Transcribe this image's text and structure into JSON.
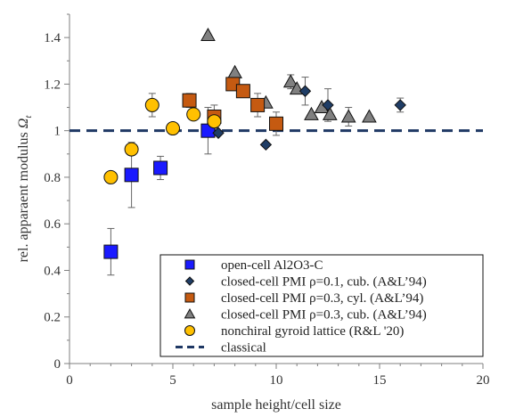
{
  "chart_data": {
    "type": "scatter",
    "title": "",
    "xlabel": "sample height/cell size",
    "ylabel_prefix": "rel. apparaent modulus ",
    "ylabel_symbol": "Ω",
    "ylabel_subscript": "t",
    "xlim": [
      0,
      20
    ],
    "ylim": [
      0,
      1.5
    ],
    "x_ticks": [
      "0",
      "5",
      "10",
      "15",
      "20"
    ],
    "y_ticks": [
      "0",
      "0.2",
      "0.4",
      "0.6",
      "0.8",
      "1",
      "1.2",
      "1.4"
    ],
    "grid": false,
    "legend_position": "bottom-right",
    "series": [
      {
        "name": "open-cell Al2O3-C",
        "marker": "square",
        "color": "#1a1aff",
        "edge": "#111111",
        "points": [
          {
            "x": 2.0,
            "y": 0.48,
            "err": 0.1
          },
          {
            "x": 3.0,
            "y": 0.81,
            "err": 0.14
          },
          {
            "x": 4.4,
            "y": 0.84,
            "err": 0.05
          },
          {
            "x": 6.7,
            "y": 1.0,
            "err": 0.1
          }
        ]
      },
      {
        "name": "closed-cell PMI ρ=0.1, cub. (A&L’94)",
        "marker": "diamond",
        "color": "#1f3d66",
        "edge": "#111111",
        "points": [
          {
            "x": 7.2,
            "y": 0.99
          },
          {
            "x": 9.5,
            "y": 0.94
          },
          {
            "x": 11.4,
            "y": 1.17,
            "err": 0.06
          },
          {
            "x": 12.5,
            "y": 1.11,
            "err": 0.07
          },
          {
            "x": 16.0,
            "y": 1.11,
            "err": 0.03
          }
        ]
      },
      {
        "name": "closed-cell PMI ρ=0.3, cyl. (A&L’94)",
        "marker": "square",
        "color": "#c55a11",
        "edge": "#111111",
        "points": [
          {
            "x": 5.8,
            "y": 1.13,
            "err": 0.03
          },
          {
            "x": 7.0,
            "y": 1.06,
            "err": 0.05
          },
          {
            "x": 7.9,
            "y": 1.2
          },
          {
            "x": 8.4,
            "y": 1.17
          },
          {
            "x": 9.1,
            "y": 1.11,
            "err": 0.05
          },
          {
            "x": 10.0,
            "y": 1.03,
            "err": 0.05
          }
        ]
      },
      {
        "name": "closed-cell PMI ρ=0.3, cub. (A&L’94)",
        "marker": "triangle",
        "color": "#808080",
        "edge": "#111111",
        "points": [
          {
            "x": 6.7,
            "y": 1.41
          },
          {
            "x": 8.0,
            "y": 1.25
          },
          {
            "x": 9.5,
            "y": 1.12
          },
          {
            "x": 10.7,
            "y": 1.21,
            "err": 0.03
          },
          {
            "x": 11.0,
            "y": 1.18
          },
          {
            "x": 11.7,
            "y": 1.07
          },
          {
            "x": 12.2,
            "y": 1.1
          },
          {
            "x": 12.6,
            "y": 1.07
          },
          {
            "x": 13.5,
            "y": 1.06,
            "err": 0.04
          },
          {
            "x": 14.5,
            "y": 1.06
          }
        ]
      },
      {
        "name": "nonchiral gyroid lattice (R&L '20)",
        "marker": "circle",
        "color": "#ffc000",
        "edge": "#111111",
        "points": [
          {
            "x": 2.0,
            "y": 0.8
          },
          {
            "x": 3.0,
            "y": 0.92
          },
          {
            "x": 4.0,
            "y": 1.11,
            "err": 0.05
          },
          {
            "x": 5.0,
            "y": 1.01
          },
          {
            "x": 6.0,
            "y": 1.07
          },
          {
            "x": 7.0,
            "y": 1.04,
            "err": 0.03
          }
        ]
      }
    ],
    "reference_line": {
      "name": "classical",
      "y": 1.0,
      "color": "#1f3864"
    }
  }
}
